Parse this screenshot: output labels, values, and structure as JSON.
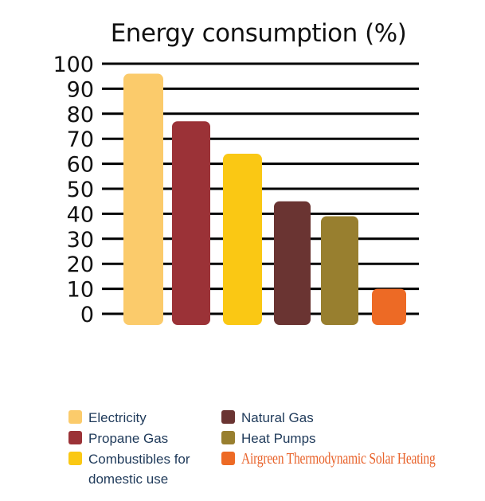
{
  "chart_data": {
    "type": "bar",
    "title": "Energy consumption (%)",
    "xlabel": "",
    "ylabel": "",
    "ylim": [
      0,
      100
    ],
    "yticks": [
      0,
      10,
      20,
      30,
      40,
      50,
      60,
      70,
      80,
      90,
      100
    ],
    "grid": true,
    "categories": [
      "Electricity",
      "Propane Gas",
      "Combustibles for domestic use",
      "Natural Gas",
      "Heat Pumps",
      "Airgreen Thermodynamic Solar Heating"
    ],
    "values": [
      96,
      77,
      64,
      45,
      39,
      10
    ],
    "colors": [
      "#fbcb6b",
      "#9b3237",
      "#fac814",
      "#6a3432",
      "#987f2f",
      "#ed6a25"
    ],
    "legend_position": "bottom"
  },
  "legend": [
    {
      "label": "Electricity",
      "color": "#fbcb6b"
    },
    {
      "label": "Propane Gas",
      "color": "#9b3237"
    },
    {
      "label": "Combustibles for domestic use",
      "color": "#fac814"
    },
    {
      "label": "Natural Gas",
      "color": "#6a3432"
    },
    {
      "label": "Heat Pumps",
      "color": "#987f2f"
    },
    {
      "label": "Airgreen Thermodynamic Solar Heating",
      "color": "#ed6a25"
    }
  ]
}
